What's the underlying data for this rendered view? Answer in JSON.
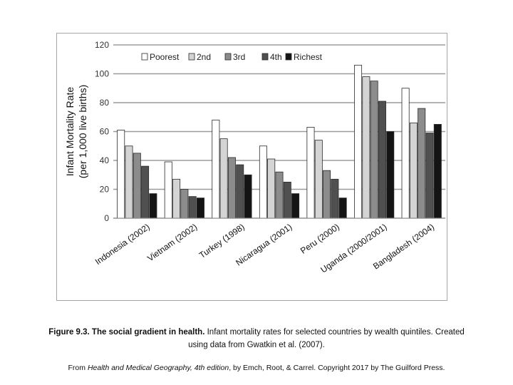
{
  "chart_data": {
    "type": "bar",
    "title": "",
    "ylabel_lines": [
      "Infant Mortality Rate",
      "(per 1,000 live births)"
    ],
    "xlabel": "",
    "ylim": [
      0,
      120
    ],
    "yticks": [
      0,
      20,
      40,
      60,
      80,
      100,
      120
    ],
    "grid": true,
    "legend_position": "top",
    "categories": [
      "Indonesia (2002)",
      "Vietnam (2002)",
      "Turkey (1998)",
      "Nicaragua (2001)",
      "Peru (2000)",
      "Uganda (2000/2001)",
      "Bangladesh (2004)"
    ],
    "series": [
      {
        "name": "Poorest",
        "color": "#ffffff",
        "values": [
          61,
          39,
          68,
          50,
          63,
          106,
          90
        ]
      },
      {
        "name": "2nd",
        "color": "#d4d4d4",
        "values": [
          50,
          27,
          55,
          41,
          54,
          98,
          66
        ]
      },
      {
        "name": "3rd",
        "color": "#8c8c8c",
        "values": [
          45,
          20,
          42,
          32,
          33,
          95,
          76
        ]
      },
      {
        "name": "4th",
        "color": "#505050",
        "values": [
          36,
          15,
          37,
          25,
          27,
          81,
          59
        ]
      },
      {
        "name": "Richest",
        "color": "#141414",
        "values": [
          17,
          14,
          30,
          17,
          14,
          60,
          65
        ]
      }
    ]
  },
  "caption": {
    "bold": "Figure 9.3. The social gradient in health.",
    "rest": " Infant mortality rates for selected countries by wealth quintiles. Created using data from Gwatkin et al. (2007)."
  },
  "source": {
    "prefix": "From ",
    "title": "Health and Medical Geography, 4th edition",
    "suffix": ", by Emch, Root, & Carrel. Copyright 2017 by The Guilford Press."
  }
}
